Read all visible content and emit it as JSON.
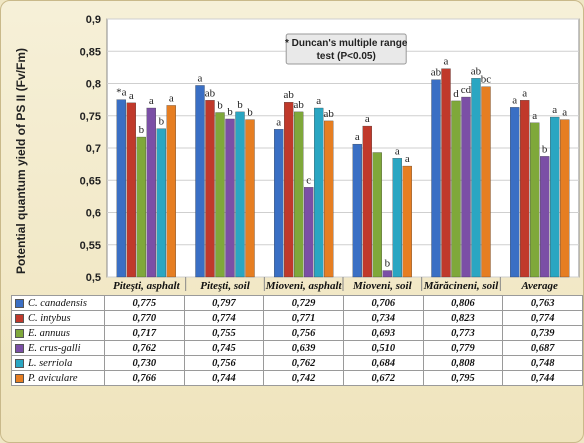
{
  "chart_data": {
    "type": "bar",
    "ylabel": "Potential quantum yield of PS II (Fv/Fm)",
    "ylim": [
      0.5,
      0.9
    ],
    "yticks": [
      "0,5",
      "0,55",
      "0,6",
      "0,65",
      "0,7",
      "0,75",
      "0,8",
      "0,85",
      "0,9"
    ],
    "categories": [
      "Piteşti, asphalt",
      "Piteşti, soil",
      "Mioveni, asphalt",
      "Mioveni, soil",
      "Mărăcineni, soil",
      "Average"
    ],
    "annotation": "* Duncan's multiple range test (P<0.05)",
    "series": [
      {
        "name": "C. canadensis",
        "color": "#3a6fc4",
        "values": [
          0.775,
          0.797,
          0.729,
          0.706,
          0.806,
          0.763
        ],
        "labels": [
          "*a",
          "a",
          "a",
          "a",
          "ab",
          "a"
        ],
        "display": [
          "0,775",
          "0,797",
          "0,729",
          "0,706",
          "0,806",
          "0,763"
        ]
      },
      {
        "name": "C. intybus",
        "color": "#c0392b",
        "values": [
          0.77,
          0.774,
          0.771,
          0.734,
          0.823,
          0.774
        ],
        "labels": [
          "a",
          "ab",
          "ab",
          "a",
          "a",
          "a"
        ],
        "display": [
          "0,770",
          "0,774",
          "0,771",
          "0,734",
          "0,823",
          "0,774"
        ]
      },
      {
        "name": "E. annuus",
        "color": "#7fa83a",
        "values": [
          0.717,
          0.755,
          0.756,
          0.693,
          0.773,
          0.739
        ],
        "labels": [
          "b",
          "b",
          "ab",
          "",
          "d",
          "a"
        ],
        "display": [
          "0,717",
          "0,755",
          "0,756",
          "0,693",
          "0,773",
          "0,739"
        ]
      },
      {
        "name": "E. crus-galli",
        "color": "#7b4fa6",
        "values": [
          0.762,
          0.745,
          0.639,
          0.51,
          0.779,
          0.687
        ],
        "labels": [
          "a",
          "b",
          "c",
          "b",
          "cd",
          "b"
        ],
        "display": [
          "0,762",
          "0,745",
          "0,639",
          "0,510",
          "0,779",
          "0,687"
        ]
      },
      {
        "name": "L. serriola",
        "color": "#2aa6c2",
        "values": [
          0.73,
          0.756,
          0.762,
          0.684,
          0.808,
          0.748
        ],
        "labels": [
          "b",
          "b",
          "a",
          "a",
          "ab",
          "a"
        ],
        "display": [
          "0,730",
          "0,756",
          "0,762",
          "0,684",
          "0,808",
          "0,748"
        ]
      },
      {
        "name": "P. aviculare",
        "color": "#e67e22",
        "values": [
          0.766,
          0.744,
          0.742,
          0.672,
          0.795,
          0.744
        ],
        "labels": [
          "a",
          "b",
          "ab",
          "a",
          "bc",
          "a"
        ],
        "display": [
          "0,766",
          "0,744",
          "0,742",
          "0,672",
          "0,795",
          "0,744"
        ]
      }
    ]
  }
}
